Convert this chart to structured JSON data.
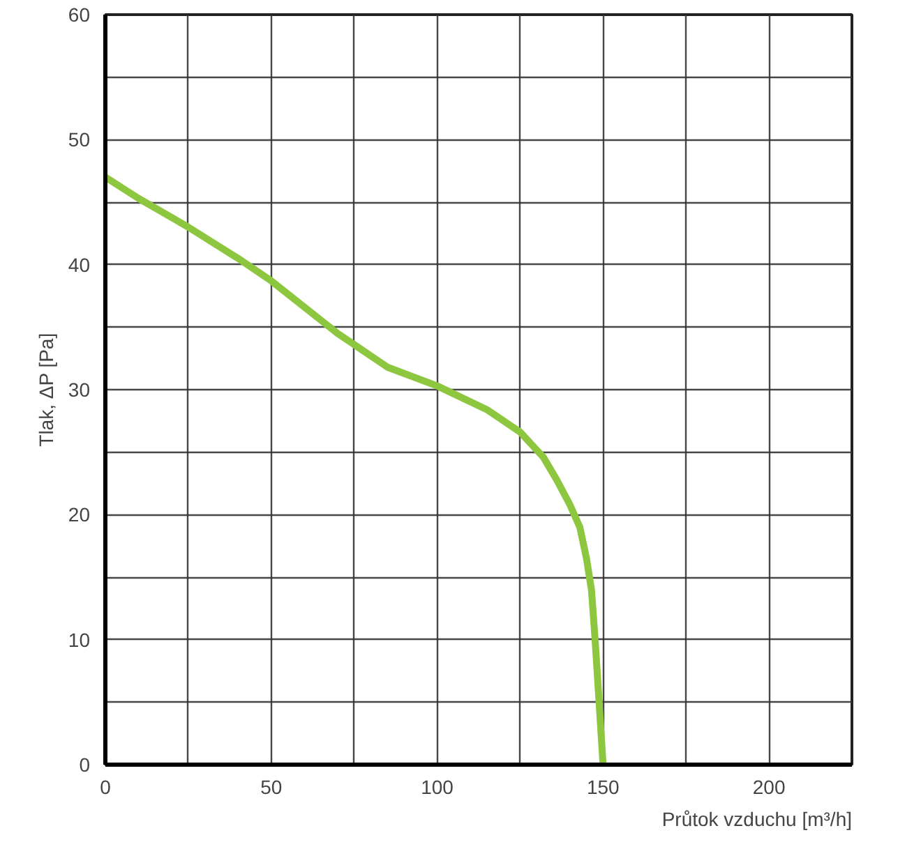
{
  "chart_data": {
    "type": "line",
    "xlabel": "Průtok vzduchu [m³/h]",
    "ylabel": "Tlak, ΔP [Pa]",
    "x": [
      0,
      10,
      25,
      40,
      50,
      60,
      70,
      85,
      100,
      115,
      125,
      132,
      136,
      140,
      143,
      145,
      146.5,
      147.6,
      148.8,
      150
    ],
    "series": [
      {
        "color": "#8dc63f",
        "values": [
          47,
          45.3,
          43,
          40.5,
          38.7,
          36.6,
          34.5,
          31.8,
          30.3,
          28.4,
          26.6,
          24.6,
          22.8,
          20.8,
          19,
          16.5,
          14,
          10,
          5,
          0
        ]
      }
    ],
    "xlim": [
      0,
      225
    ],
    "ylim": [
      0,
      60
    ],
    "xticks": [
      0,
      {
        "value": 25,
        "label": null
      },
      50,
      {
        "value": 75,
        "label": null
      },
      100,
      {
        "value": 125,
        "label": null
      },
      150,
      {
        "value": 175,
        "label": null
      },
      200,
      {
        "value": 225,
        "label": null
      }
    ],
    "yticks": [
      0,
      {
        "value": 5,
        "label": null
      },
      10,
      {
        "value": 15,
        "label": null
      },
      20,
      {
        "value": 25,
        "label": null
      },
      30,
      {
        "value": 35,
        "label": null
      },
      40,
      {
        "value": 45,
        "label": null
      },
      50,
      {
        "value": 55,
        "label": null
      },
      60
    ],
    "grid": true,
    "marker": "none",
    "line_style": "solid"
  }
}
